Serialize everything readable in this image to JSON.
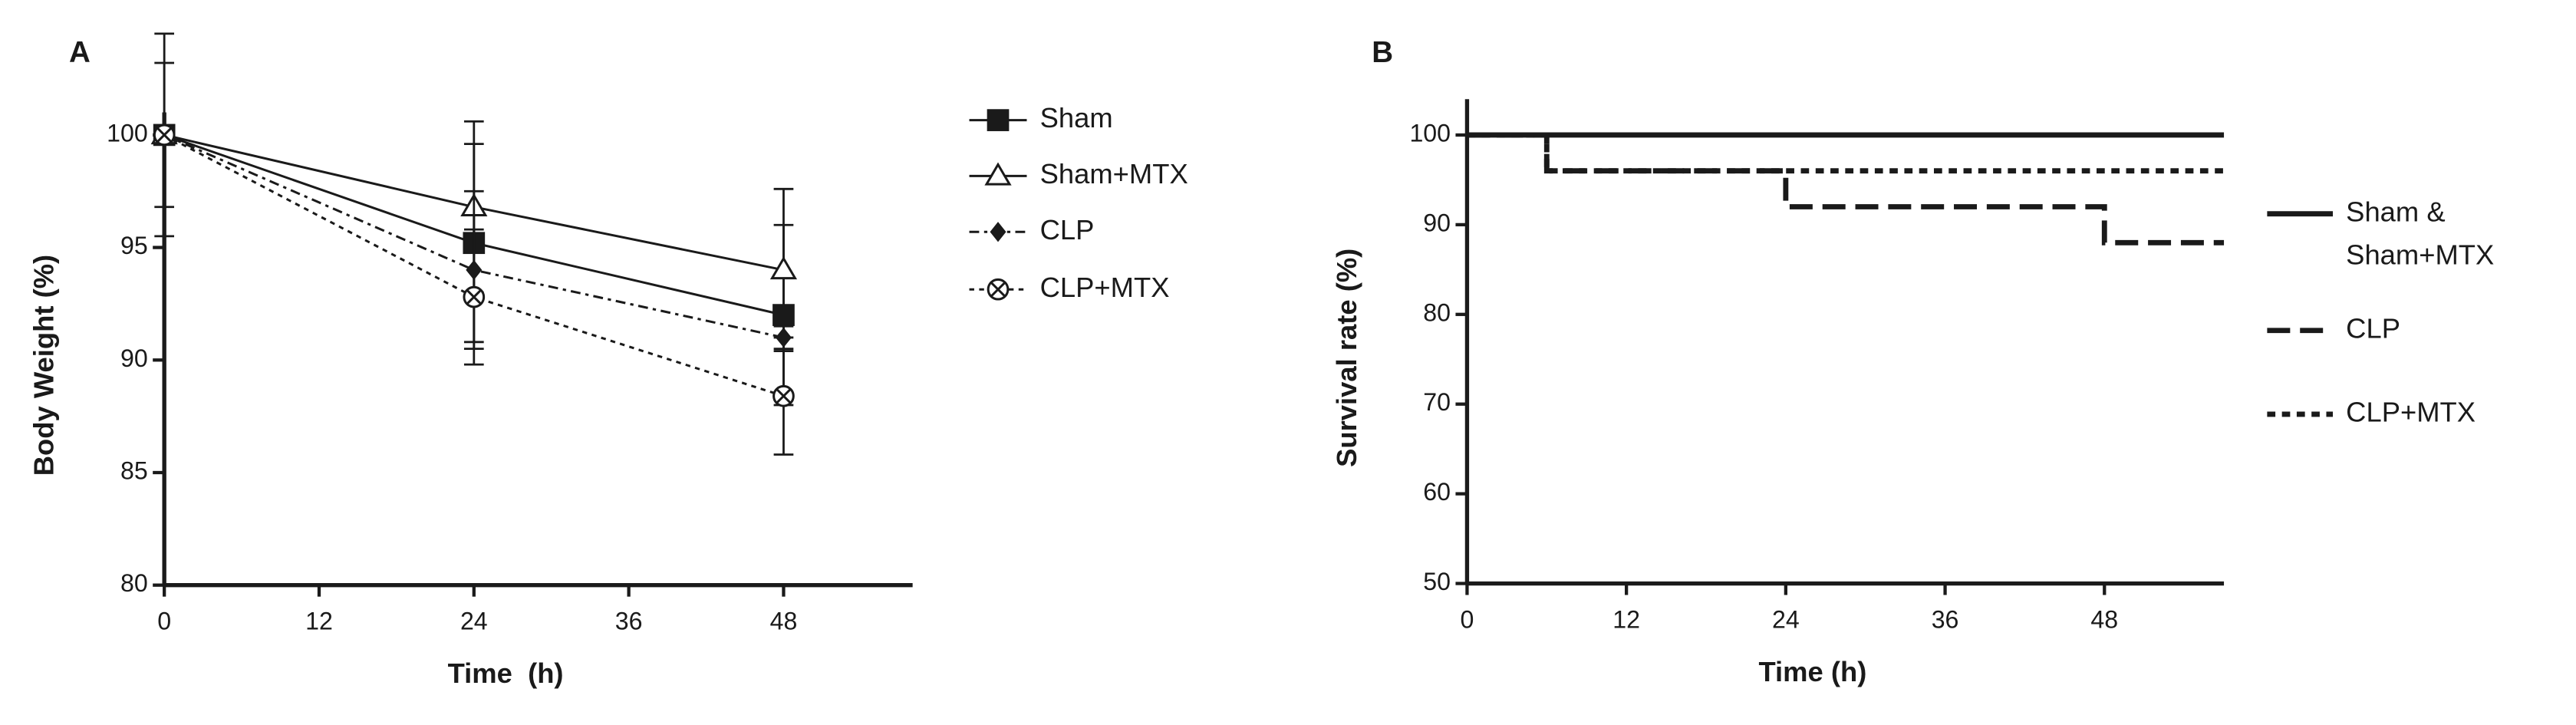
{
  "chart_data": [
    {
      "type": "line",
      "panel": "A",
      "xlabel": "Time  (h)",
      "ylabel": "Body Weight (%)",
      "xlim": [
        0,
        58
      ],
      "xticks": [
        0,
        12,
        24,
        36,
        48
      ],
      "ylim": [
        80,
        101
      ],
      "yticks": [
        80,
        85,
        90,
        95,
        100
      ],
      "x": [
        0,
        24,
        48
      ],
      "series": [
        {
          "name": "Sham",
          "color": "#1a1a1a",
          "marker": "square",
          "dash": "solid",
          "values": [
            100,
            95.2,
            92
          ],
          "errors": [
            4.5,
            4.4,
            4
          ]
        },
        {
          "name": "Sham+MTX",
          "color": "#1a1a1a",
          "marker": "triangle",
          "dash": "solid",
          "values": [
            100,
            96.8,
            94
          ],
          "errors": [
            0,
            3.8,
            3.6
          ]
        },
        {
          "name": "CLP",
          "color": "#1a1a1a",
          "marker": "diamond",
          "dash": "dashdot",
          "values": [
            100,
            94,
            91
          ],
          "errors": [
            0,
            3.5,
            0.5
          ]
        },
        {
          "name": "CLP+MTX",
          "color": "#1a1a1a",
          "marker": "circle-x",
          "dash": "dotted",
          "values": [
            100,
            92.8,
            88.4
          ],
          "errors": [
            3.2,
            3,
            2.6
          ]
        }
      ]
    },
    {
      "type": "step",
      "panel": "B",
      "xlabel": "Time (h)",
      "ylabel": "Survival rate (%)",
      "xlim": [
        0,
        57
      ],
      "xticks": [
        0,
        12,
        24,
        36,
        48
      ],
      "ylim": [
        50,
        104
      ],
      "yticks": [
        50,
        60,
        70,
        80,
        90,
        100
      ],
      "series": [
        {
          "name": "Sham & Sham+MTX",
          "color": "#1a1a1a",
          "dash": "solid",
          "x": [
            0
          ],
          "values": [
            100
          ]
        },
        {
          "name": "CLP",
          "color": "#1a1a1a",
          "dash": "longdash",
          "x": [
            0,
            6,
            24,
            48
          ],
          "values": [
            100,
            96,
            92,
            88
          ]
        },
        {
          "name": "CLP+MTX",
          "color": "#1a1a1a",
          "dash": "dashed",
          "x": [
            0,
            6
          ],
          "values": [
            100,
            96
          ]
        }
      ]
    }
  ]
}
